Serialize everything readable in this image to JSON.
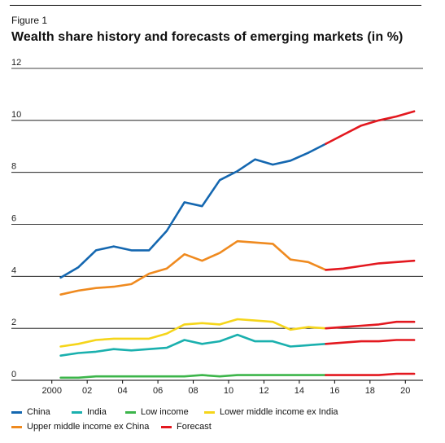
{
  "figure_label": "Figure 1",
  "title": "Wealth share history and forecasts of emerging markets (in %)",
  "chart_data": {
    "type": "line",
    "title": "Wealth share history and forecasts of emerging markets (in %)",
    "xlabel": "",
    "ylabel": "",
    "xlim": [
      1999,
      2021
    ],
    "ylim": [
      0,
      12
    ],
    "x_ticks": [
      2000,
      2002,
      2004,
      2006,
      2008,
      2010,
      2012,
      2014,
      2016,
      2018,
      2020
    ],
    "x_tick_labels": [
      "2000",
      "02",
      "04",
      "06",
      "08",
      "10",
      "12",
      "14",
      "16",
      "18",
      "20"
    ],
    "y_ticks": [
      0,
      2,
      4,
      6,
      8,
      10,
      12
    ],
    "y_tick_labels": [
      "0",
      "2",
      "4",
      "6",
      "8",
      "10",
      "12"
    ],
    "grid": "horizontal",
    "legend_position": "bottom",
    "series": [
      {
        "name": "China",
        "color": "#1467b0",
        "x": [
          2000.5,
          2001.5,
          2002.5,
          2003.5,
          2004.5,
          2005.5,
          2006.5,
          2007.5,
          2008.5,
          2009.5,
          2010.5,
          2011.5,
          2012.5,
          2013.5,
          2014.5,
          2015.5
        ],
        "y": [
          3.95,
          4.35,
          5.0,
          5.15,
          5.0,
          5.0,
          5.75,
          6.85,
          6.7,
          7.7,
          8.05,
          8.5,
          8.3,
          8.45,
          8.75,
          9.1
        ]
      },
      {
        "name": "India",
        "color": "#1ab0ae",
        "x": [
          2000.5,
          2001.5,
          2002.5,
          2003.5,
          2004.5,
          2005.5,
          2006.5,
          2007.5,
          2008.5,
          2009.5,
          2010.5,
          2011.5,
          2012.5,
          2013.5,
          2014.5,
          2015.5
        ],
        "y": [
          0.95,
          1.05,
          1.1,
          1.2,
          1.15,
          1.2,
          1.25,
          1.55,
          1.4,
          1.5,
          1.75,
          1.5,
          1.5,
          1.3,
          1.35,
          1.4
        ]
      },
      {
        "name": "Low income",
        "color": "#3cb54a",
        "x": [
          2000.5,
          2001.5,
          2002.5,
          2003.5,
          2004.5,
          2005.5,
          2006.5,
          2007.5,
          2008.5,
          2009.5,
          2010.5,
          2011.5,
          2012.5,
          2013.5,
          2014.5,
          2015.5
        ],
        "y": [
          0.1,
          0.1,
          0.15,
          0.15,
          0.15,
          0.15,
          0.15,
          0.15,
          0.2,
          0.15,
          0.2,
          0.2,
          0.2,
          0.2,
          0.2,
          0.2
        ]
      },
      {
        "name": "Lower middle income ex India",
        "color": "#f5d51a",
        "x": [
          2000.5,
          2001.5,
          2002.5,
          2003.5,
          2004.5,
          2005.5,
          2006.5,
          2007.5,
          2008.5,
          2009.5,
          2010.5,
          2011.5,
          2012.5,
          2013.5,
          2014.5,
          2015.5
        ],
        "y": [
          1.3,
          1.4,
          1.55,
          1.6,
          1.6,
          1.6,
          1.8,
          2.15,
          2.2,
          2.15,
          2.35,
          2.3,
          2.25,
          1.95,
          2.05,
          2.0
        ]
      },
      {
        "name": "Upper middle income ex China",
        "color": "#ef8a1f",
        "x": [
          2000.5,
          2001.5,
          2002.5,
          2003.5,
          2004.5,
          2005.5,
          2006.5,
          2007.5,
          2008.5,
          2009.5,
          2010.5,
          2011.5,
          2012.5,
          2013.5,
          2014.5,
          2015.5
        ],
        "y": [
          3.3,
          3.45,
          3.55,
          3.6,
          3.7,
          4.1,
          4.3,
          4.85,
          4.6,
          4.9,
          5.35,
          5.3,
          5.25,
          4.65,
          4.55,
          4.25
        ]
      },
      {
        "name": "Forecast",
        "color": "#e3181f",
        "forecast": true,
        "segments": [
          {
            "x": [
              2015.5,
              2016.5,
              2017.5,
              2018.5,
              2019.5,
              2020.5
            ],
            "y": [
              9.1,
              9.45,
              9.8,
              10.0,
              10.15,
              10.35
            ]
          },
          {
            "x": [
              2015.5,
              2016.5,
              2017.5,
              2018.5,
              2019.5,
              2020.5
            ],
            "y": [
              4.25,
              4.3,
              4.4,
              4.5,
              4.55,
              4.6
            ]
          },
          {
            "x": [
              2015.5,
              2016.5,
              2017.5,
              2018.5,
              2019.5,
              2020.5
            ],
            "y": [
              2.0,
              2.05,
              2.1,
              2.15,
              2.25,
              2.25
            ]
          },
          {
            "x": [
              2015.5,
              2016.5,
              2017.5,
              2018.5,
              2019.5,
              2020.5
            ],
            "y": [
              1.4,
              1.45,
              1.5,
              1.5,
              1.55,
              1.55
            ]
          },
          {
            "x": [
              2015.5,
              2016.5,
              2017.5,
              2018.5,
              2019.5,
              2020.5
            ],
            "y": [
              0.2,
              0.2,
              0.2,
              0.2,
              0.25,
              0.25
            ]
          }
        ]
      }
    ],
    "legend": [
      {
        "label": "China",
        "color": "#1467b0"
      },
      {
        "label": "India",
        "color": "#1ab0ae"
      },
      {
        "label": "Low income",
        "color": "#3cb54a"
      },
      {
        "label": "Lower middle income ex India",
        "color": "#f5d51a"
      },
      {
        "label": "Upper middle income ex China",
        "color": "#ef8a1f"
      },
      {
        "label": "Forecast",
        "color": "#e3181f"
      }
    ]
  }
}
